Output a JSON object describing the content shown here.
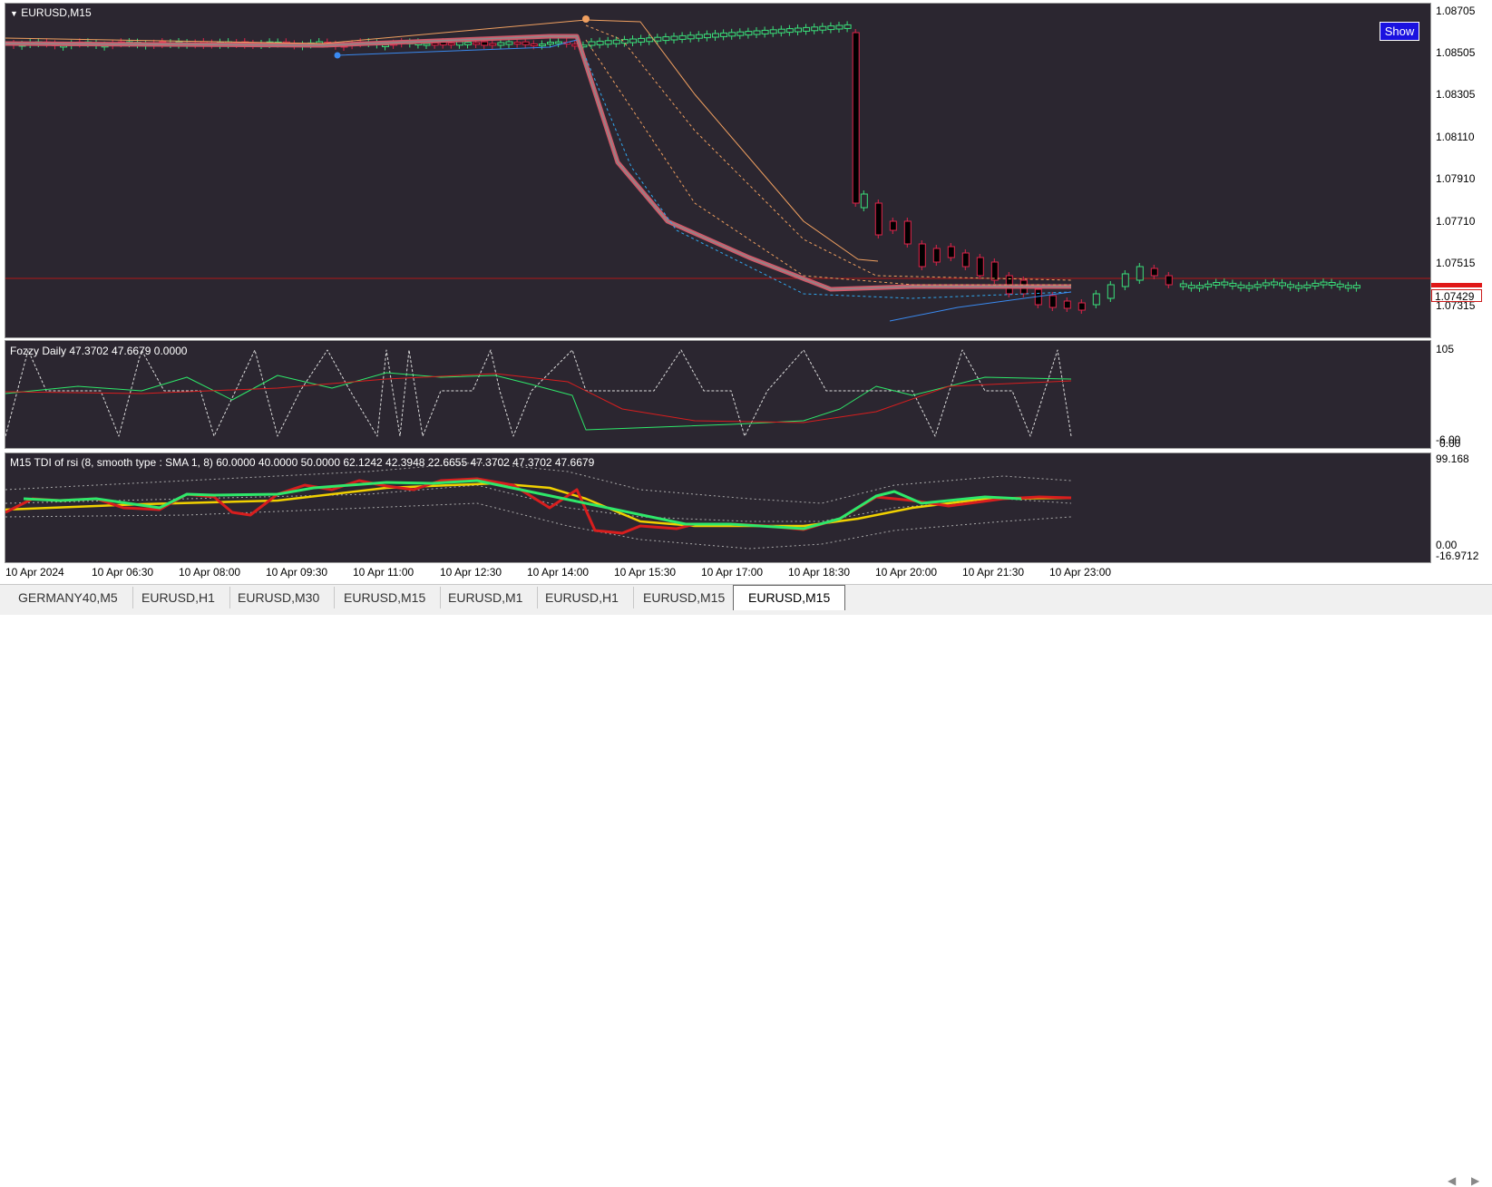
{
  "main": {
    "title": "EURUSD,M15",
    "show_button": "Show",
    "price_axis": [
      "1.08705",
      "1.08505",
      "1.08305",
      "1.08110",
      "1.07910",
      "1.07710",
      "1.07515",
      "1.07315"
    ],
    "current_price": "1.07429"
  },
  "indicator1": {
    "title": "Fozzy Daily 47.3702 47.6679 0.0000",
    "axis_top": "105",
    "axis_bottom": "0.00",
    "axis_bottom2": "-6.00"
  },
  "indicator2": {
    "title": "M15 TDI of rsi  (8, smooth type :  SMA 1, 8) 60.0000 40.0000 50.0000 62.1242 42.3948 22.6655 47.3702 47.3702 47.6679",
    "axis_top": "99.168",
    "axis_mid": "0.00",
    "axis_bottom": "-16.9712"
  },
  "time_axis": [
    "10 Apr 2024",
    "10 Apr 06:30",
    "10 Apr 08:00",
    "10 Apr 09:30",
    "10 Apr 11:00",
    "10 Apr 12:30",
    "10 Apr 14:00",
    "10 Apr 15:30",
    "10 Apr 17:00",
    "10 Apr 18:30",
    "10 Apr 20:00",
    "10 Apr 21:30",
    "10 Apr 23:00"
  ],
  "tabs": [
    "GERMANY40,M5",
    "EURUSD,H1",
    "EURUSD,M30",
    "EURUSD,M15",
    "EURUSD,M1",
    "EURUSD,H1",
    "EURUSD,M15",
    "EURUSD,M15"
  ],
  "active_tab_index": 7,
  "colors": {
    "background": "#2b2630",
    "bull_candle": "#3ae07a",
    "bear_candle": "#e0234a",
    "red_line": "#d81e1e",
    "green_line": "#2ee86a",
    "yellow_line": "#f0d000",
    "accent": "#1a12e0"
  }
}
